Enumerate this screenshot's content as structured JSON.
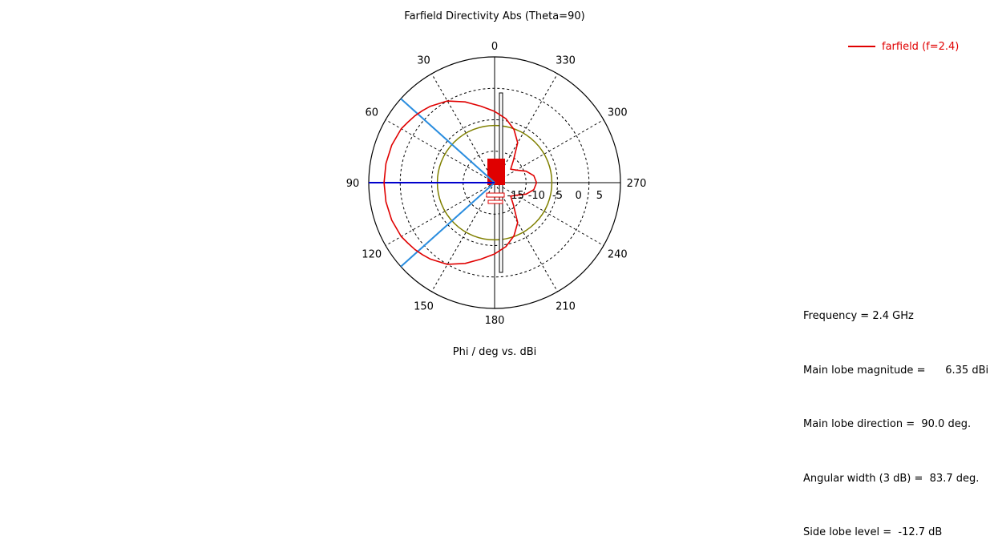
{
  "chart_data": {
    "type": "polar",
    "title": "Farfield Directivity Abs (Theta=90)",
    "xlabel": "Phi / deg vs. dBi",
    "angle_tick_labels": [
      "0",
      "30",
      "60",
      "90",
      "120",
      "150",
      "180",
      "210",
      "240",
      "270",
      "300",
      "330"
    ],
    "angle_direction": "counter-clockwise",
    "zero_at": "top",
    "radial_range": [
      -20,
      10
    ],
    "radial_tick_labels": [
      "-15",
      "-10",
      "-5",
      "0",
      "5"
    ],
    "radial_ticks": [
      -15,
      -10,
      -5,
      0,
      5
    ],
    "grid": true,
    "legend_position": "top-right",
    "series": [
      {
        "name": "farfield (f=2.4)",
        "color": "#e00000",
        "phi_deg": [
          0,
          10,
          20,
          30,
          40,
          45,
          50,
          55,
          60,
          70,
          80,
          90,
          100,
          110,
          120,
          125,
          130,
          135,
          140,
          150,
          160,
          170,
          180,
          190,
          200,
          210,
          220,
          230,
          240,
          250,
          260,
          270,
          280,
          290,
          300,
          310,
          320,
          330,
          340,
          350,
          360
        ],
        "directivity_dbi": [
          -3.0,
          -1.5,
          0.5,
          2.5,
          3.8,
          4.3,
          4.8,
          5.2,
          5.7,
          6.1,
          6.3,
          6.35,
          6.3,
          6.1,
          5.7,
          5.2,
          4.8,
          4.3,
          3.8,
          2.5,
          0.5,
          -1.5,
          -3.0,
          -4.5,
          -6.5,
          -9.0,
          -13.0,
          -15.0,
          -14.0,
          -12.0,
          -10.5,
          -10.0,
          -10.5,
          -12.0,
          -14.0,
          -15.0,
          -13.0,
          -9.0,
          -6.5,
          -4.5,
          -3.0
        ]
      }
    ],
    "reference_circle": {
      "color": "#808000",
      "value_dbi": -6.35
    },
    "markers": {
      "main_lobe_direction_deg": 90.0,
      "main_lobe_color": "#0000cc",
      "half_power_beam_edges_deg": [
        48.15,
        131.85
      ],
      "beam_edge_color": "#2a8ddf"
    }
  },
  "info": {
    "frequency": "Frequency = 2.4 GHz",
    "main_lobe_magnitude": "Main lobe magnitude =      6.35 dBi",
    "main_lobe_direction": "Main lobe direction =  90.0 deg.",
    "angular_width": "Angular width (3 dB) =  83.7 deg.",
    "side_lobe_level": "Side lobe level =  -12.7 dB"
  }
}
